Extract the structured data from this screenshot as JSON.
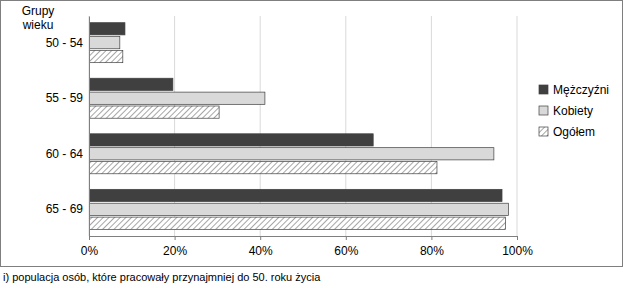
{
  "chart_data": {
    "type": "bar",
    "orientation": "horizontal",
    "y_label": "Grupy wieku",
    "categories": [
      "50 - 54",
      "55 - 59",
      "60 - 64",
      "65 - 69"
    ],
    "series": [
      {
        "name": "Mężczyźni",
        "color": "#404040",
        "values": [
          8.4,
          19.6,
          66.4,
          96.5
        ]
      },
      {
        "name": "Kobiety",
        "color": "#d9d9d9",
        "values": [
          7.2,
          41.1,
          94.6,
          98.0
        ]
      },
      {
        "name": "Ogółem",
        "color": "#808080",
        "line_style": "hatch",
        "values": [
          7.9,
          30.4,
          81.3,
          97.3
        ]
      }
    ],
    "xlim": [
      0,
      100
    ],
    "xticks": [
      {
        "value": 0,
        "label": "0%"
      },
      {
        "value": 20,
        "label": "20%"
      },
      {
        "value": 40,
        "label": "40%"
      },
      {
        "value": 60,
        "label": "60%"
      },
      {
        "value": 80,
        "label": "80%"
      },
      {
        "value": 100,
        "label": "100%"
      }
    ],
    "grid": true,
    "legend": "right",
    "annotations": [
      "i) populacja osób, które pracowały przynajmniej do 50. roku życia"
    ]
  }
}
